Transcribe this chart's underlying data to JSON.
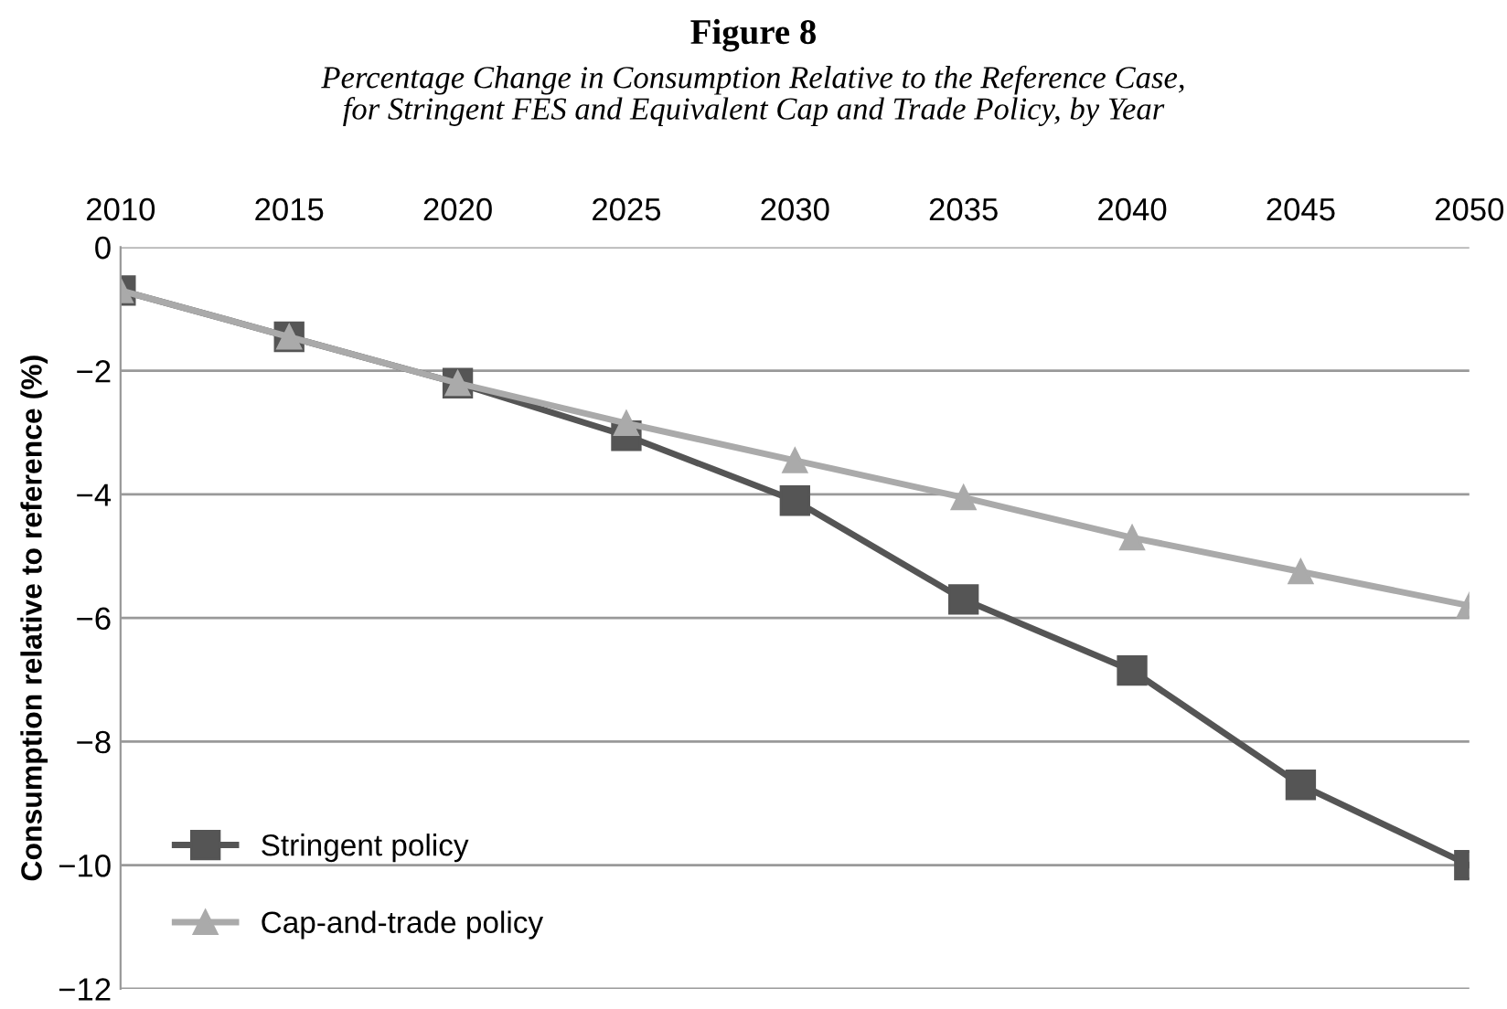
{
  "chart_data": {
    "type": "line",
    "title": "Figure 8",
    "subtitle": "Percentage Change in Consumption Relative to the Reference Case,\nfor Stringent FES and Equivalent Cap and Trade Policy, by Year",
    "ylabel": "Consumption relative to reference (%)",
    "x": [
      2010,
      2015,
      2020,
      2025,
      2030,
      2035,
      2040,
      2045,
      2050
    ],
    "series": [
      {
        "name": "Stringent policy",
        "color": "#555555",
        "marker": "square",
        "values": [
          -0.7,
          -1.45,
          -2.2,
          -3.05,
          -4.1,
          -5.7,
          -6.85,
          -8.7,
          -10.0
        ]
      },
      {
        "name": "Cap-and-trade policy",
        "color": "#aaaaaa",
        "marker": "triangle",
        "values": [
          -0.7,
          -1.45,
          -2.2,
          -2.85,
          -3.45,
          -4.05,
          -4.7,
          -5.25,
          -5.8
        ]
      }
    ],
    "xlim": [
      2010,
      2050
    ],
    "xticks": [
      2010,
      2015,
      2020,
      2025,
      2030,
      2035,
      2040,
      2045,
      2050
    ],
    "ylim": [
      -12,
      0
    ],
    "yticks": [
      {
        "value": 0,
        "label": "0"
      },
      {
        "value": -2,
        "label": "−2"
      },
      {
        "value": -4,
        "label": "−4"
      },
      {
        "value": -6,
        "label": "−6"
      },
      {
        "value": -8,
        "label": "−8"
      },
      {
        "value": -10,
        "label": "−10"
      },
      {
        "value": -12,
        "label": "−12"
      }
    ],
    "grid": "y",
    "legend": "bottom left"
  }
}
